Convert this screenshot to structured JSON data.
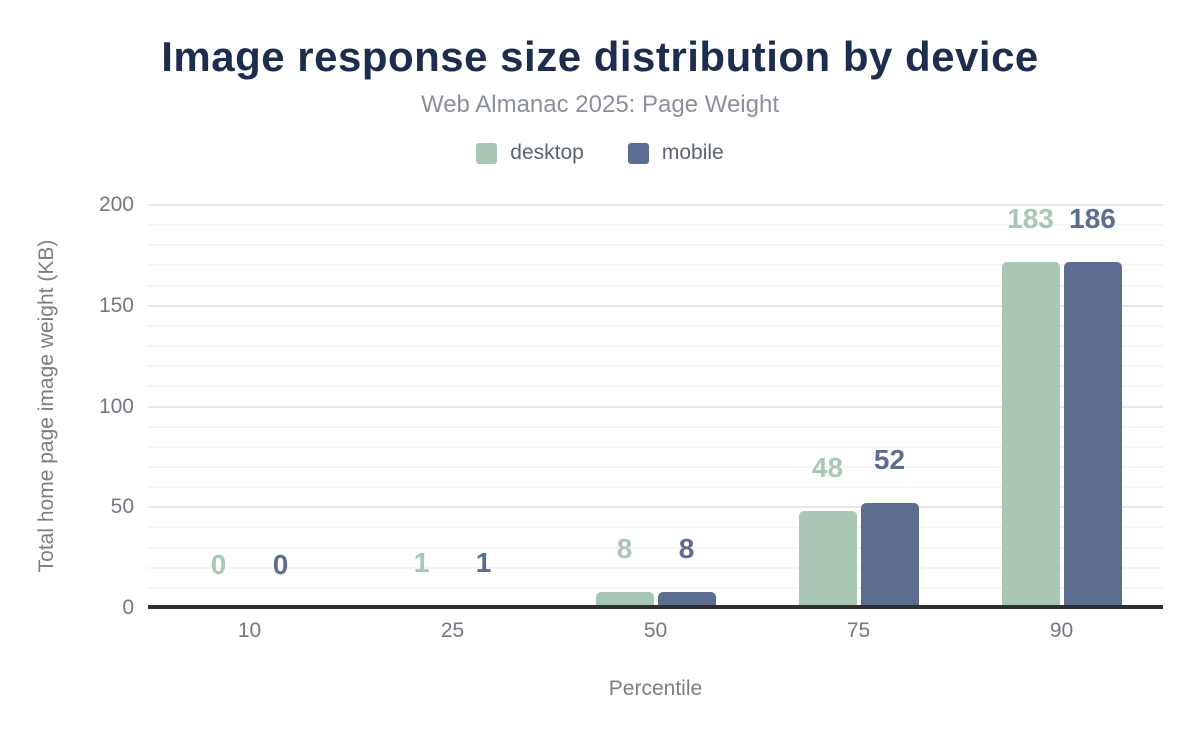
{
  "header": {
    "title": "Image response size distribution by device",
    "subtitle": "Web Almanac 2025: Page Weight"
  },
  "chart_data": {
    "type": "bar",
    "title": "Image response size distribution by device",
    "subtitle": "Web Almanac 2025: Page Weight",
    "categories": [
      "10",
      "25",
      "50",
      "75",
      "90"
    ],
    "series": [
      {
        "name": "desktop",
        "color": "#a8c7b5",
        "values": [
          0,
          1,
          8,
          48,
          183
        ]
      },
      {
        "name": "mobile",
        "color": "#5b6e90",
        "values": [
          0,
          1,
          8,
          52,
          186
        ]
      }
    ],
    "value_labels": {
      "desktop": [
        "0",
        "1",
        "8",
        "48",
        "183"
      ],
      "mobile": [
        "0",
        "1",
        "8",
        "52",
        "186"
      ]
    },
    "xlabel": "Percentile",
    "ylabel": "Total home page image weight (KB)",
    "ylim": [
      0,
      200
    ],
    "yticks": [
      0,
      50,
      100,
      150,
      200
    ],
    "grid": {
      "on": true,
      "minor_step": 10,
      "major_step": 50,
      "minor_color": "#f5f5f7",
      "major_color": "#e8e8ea"
    },
    "legend_position": "top-center",
    "axis_line_color": "#2f2f2f"
  },
  "colors": {
    "background": "#ffffff",
    "title_text": "#1c2d4d",
    "subtitle_text": "#8b9097",
    "legend_text": "#5d6470",
    "tick_text": "#74787e",
    "axis_title_text": "#7a7e85",
    "desktop_accent": "#a8c7b5",
    "mobile_accent": "#5b6e90"
  }
}
